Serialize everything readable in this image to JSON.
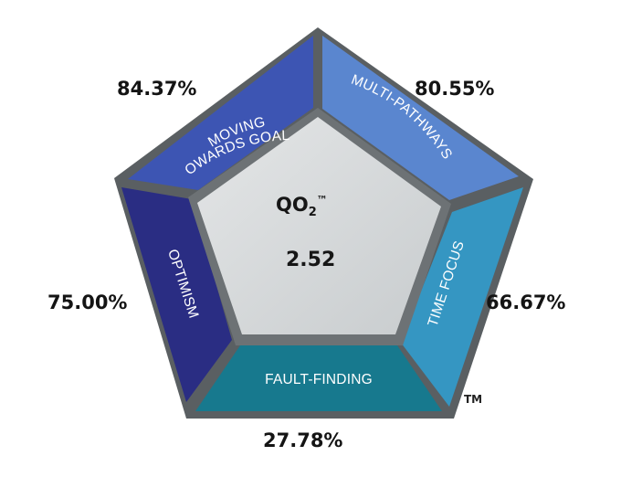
{
  "diagram": {
    "center": {
      "title": "QO",
      "subscript": "2",
      "trademark": "™",
      "score": "2.52"
    },
    "segments": [
      {
        "label_lines": [
          "MOVING",
          "TOWARDS GOALS"
        ],
        "percent": "84.37%",
        "color": "#3d55b3"
      },
      {
        "label_lines": [
          "MULTI-PATHWAYS"
        ],
        "percent": "80.55%",
        "color": "#5a86cf"
      },
      {
        "label_lines": [
          "TIME FOCUS"
        ],
        "percent": "66.67%",
        "color": "#3596c2"
      },
      {
        "label_lines": [
          "FAULT-FINDING"
        ],
        "percent": "27.78%",
        "color": "#17798e"
      },
      {
        "label_lines": [
          "OPTIMISM"
        ],
        "percent": "75.00%",
        "color": "#2a2d83"
      }
    ],
    "trademark_mark": "TM"
  }
}
